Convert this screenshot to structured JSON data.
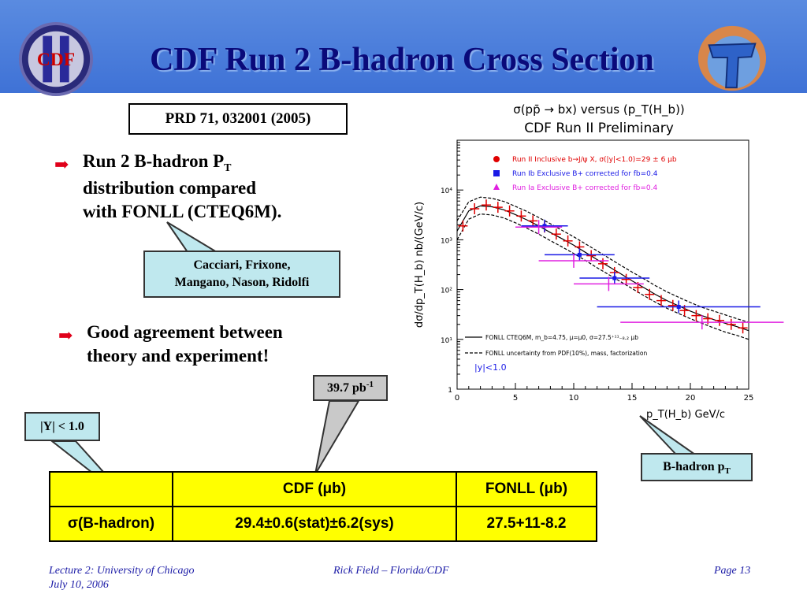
{
  "slide": {
    "title": "CDF Run 2 B-hadron Cross Section",
    "reference": "PRD 71, 032001 (2005)",
    "bullet1_lines": [
      "Run 2 B-hadron P",
      "T",
      "distribution compared",
      "with FONLL (CTEQ6M)."
    ],
    "bullet2_lines": [
      "Good agreement between",
      "theory and experiment!"
    ],
    "callout_authors": [
      "Cacciari, Frixone,",
      "Mangano, Nason, Ridolfi"
    ],
    "callout_lumi_value": "39.7 pb",
    "callout_lumi_sup": "-1",
    "callout_rapidity": "|Y| < 1.0",
    "callout_bhadron": "B-hadron p",
    "callout_bhadron_sub": "T",
    "logo_cdf_text": "CDF",
    "colors": {
      "title_bar": "#4a7ddb",
      "title_text": "#0a0a7a",
      "bullet_arrow": "#e0001a",
      "table_fill": "#ffff00",
      "callout_fill": "#bfe8ee",
      "footer_text": "#1a1aa6"
    }
  },
  "table": {
    "headers": [
      "",
      "CDF  (μb)",
      "FONLL (μb)"
    ],
    "rows": [
      {
        "label": "σ(B-hadron)",
        "cdf": "29.4±0.6(stat)±6.2(sys)",
        "fonll": "27.5+11-8.2"
      }
    ]
  },
  "footer": {
    "left_line1": "Lecture 2: University of Chicago",
    "left_line2": "July 10, 2006",
    "center": "Rick Field – Florida/CDF",
    "right": "Page 13"
  },
  "chart_data": {
    "type": "scatter",
    "title": "σ(pp̄ → bx) versus (p_T(H_b))",
    "subtitle": "CDF Run II Preliminary",
    "xlabel": "p_T(H_b) GeV/c",
    "ylabel": "dσ/dp_T(H_b) nb/(GeV/c)",
    "xlim": [
      0,
      25
    ],
    "ylim": [
      1,
      100000
    ],
    "y_scale": "log",
    "x_ticks": [
      "0",
      "5",
      "10",
      "15",
      "20",
      "25"
    ],
    "y_ticks": [
      "1",
      "10¹",
      "10²",
      "10³",
      "10⁴"
    ],
    "legend": [
      {
        "label": "Run II Inclusive b→J/ψ X, σ(|y|<1.0)=29 ± 6 μb",
        "color": "#e00000"
      },
      {
        "label": "Run Ib Exclusive B+ corrected for fb=0.4",
        "color": "#1a1ae6"
      },
      {
        "label": "Run Ia Exclusive B+ corrected for fb=0.4",
        "color": "#e020e0"
      }
    ],
    "annotations": [
      "FONLL CTEQ6M, m_b=4.75, μ=μ0, σ=27.5⁺¹¹₋₈.₂ μb",
      "FONLL uncertainty from PDF(10%), mass, factorization",
      "|y|<1.0"
    ],
    "series": [
      {
        "name": "Run II Inclusive b→J/ψ X, σ(|y|<1.0)=29 ± 6 μb",
        "x": [
          0.5,
          1.5,
          2.5,
          3.5,
          4.5,
          5.5,
          6.5,
          7.5,
          8.5,
          9.5,
          10.5,
          11.5,
          12.5,
          13.5,
          14.5,
          15.5,
          16.5,
          17.5,
          18.5,
          19.5,
          20.5,
          21.5,
          22.5,
          23.5,
          24.5
        ],
        "y": [
          1900,
          4200,
          5000,
          4500,
          3800,
          3000,
          2400,
          1800,
          1300,
          950,
          720,
          480,
          330,
          220,
          160,
          110,
          80,
          60,
          48,
          38,
          30,
          26,
          24,
          20,
          17
        ]
      },
      {
        "name": "Run Ib Exclusive B+ corrected for fb=0.4",
        "x": [
          7.5,
          10.5,
          13.5,
          19.0
        ],
        "y": [
          1900,
          500,
          170,
          45
        ]
      },
      {
        "name": "Run Ia Exclusive B+ corrected for fb=0.4",
        "x": [
          7.0,
          10.0,
          13.0,
          21.0
        ],
        "y": [
          1800,
          380,
          130,
          22
        ]
      },
      {
        "name": "FONLL CTEQ6M",
        "x": [
          0,
          1,
          2,
          3,
          4,
          5,
          6,
          7,
          8,
          9,
          10,
          11,
          12,
          13,
          14,
          15,
          16,
          17,
          18,
          19,
          20,
          21,
          22,
          23,
          24,
          25
        ],
        "y": [
          1500,
          3800,
          4800,
          4600,
          4000,
          3200,
          2500,
          1900,
          1400,
          1050,
          780,
          560,
          400,
          290,
          210,
          150,
          110,
          80,
          60,
          47,
          37,
          30,
          25,
          21,
          18,
          15
        ]
      },
      {
        "name": "FONLL uncertainty upper",
        "x": [
          0,
          1,
          2,
          3,
          4,
          5,
          6,
          7,
          8,
          9,
          10,
          11,
          12,
          13,
          14,
          15,
          16,
          17,
          18,
          19,
          20,
          21,
          22,
          23,
          24,
          25
        ],
        "y": [
          2400,
          5800,
          7200,
          6800,
          5900,
          4700,
          3700,
          2800,
          2100,
          1550,
          1150,
          830,
          600,
          430,
          310,
          225,
          165,
          120,
          90,
          70,
          55,
          44,
          37,
          31,
          26,
          22
        ]
      },
      {
        "name": "FONLL uncertainty lower",
        "x": [
          0,
          1,
          2,
          3,
          4,
          5,
          6,
          7,
          8,
          9,
          10,
          11,
          12,
          13,
          14,
          15,
          16,
          17,
          18,
          19,
          20,
          21,
          22,
          23,
          24,
          25
        ],
        "y": [
          1000,
          2600,
          3300,
          3150,
          2750,
          2200,
          1700,
          1300,
          960,
          720,
          530,
          385,
          275,
          200,
          145,
          105,
          76,
          56,
          42,
          33,
          26,
          21,
          17,
          14,
          12,
          10
        ]
      }
    ]
  }
}
